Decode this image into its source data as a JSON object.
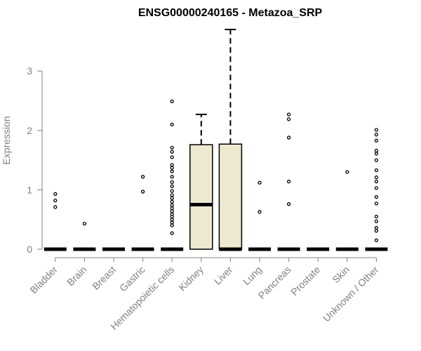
{
  "chart_data": {
    "type": "box",
    "title": "ENSG00000240165 - Metazoa_SRP",
    "xlabel": "",
    "ylabel": "Expression",
    "ylim": [
      0,
      3.7
    ],
    "yticks": [
      0,
      1,
      2,
      3
    ],
    "grid": false,
    "legend": "none",
    "box_fill": "#ede8d0",
    "box_stroke": "#000000",
    "axis_color": "#808080",
    "categories": [
      "Bladder",
      "Brain",
      "Breast",
      "Gastric",
      "Hematopoietic cells",
      "Kidney",
      "Liver",
      "Lung",
      "Pancreas",
      "Prostate",
      "Skin",
      "Unknown / Other"
    ],
    "boxes": [
      {
        "category": "Bladder",
        "q1": 0,
        "median": 0,
        "q3": 0,
        "whisker_low": 0,
        "whisker_high": 0,
        "outliers": [
          0.93,
          0.82,
          0.71
        ]
      },
      {
        "category": "Brain",
        "q1": 0,
        "median": 0,
        "q3": 0,
        "whisker_low": 0,
        "whisker_high": 0,
        "outliers": [
          0.43
        ]
      },
      {
        "category": "Breast",
        "q1": 0,
        "median": 0,
        "q3": 0,
        "whisker_low": 0,
        "whisker_high": 0,
        "outliers": []
      },
      {
        "category": "Gastric",
        "q1": 0,
        "median": 0,
        "q3": 0,
        "whisker_low": 0,
        "whisker_high": 0,
        "outliers": [
          1.22,
          0.97
        ]
      },
      {
        "category": "Hematopoietic cells",
        "q1": 0,
        "median": 0,
        "q3": 0,
        "whisker_low": 0,
        "whisker_high": 0,
        "outliers": [
          2.49,
          2.1,
          1.71,
          1.64,
          1.55,
          1.42,
          1.37,
          1.31,
          1.22,
          1.13,
          1.06,
          0.98,
          0.91,
          0.86,
          0.8,
          0.74,
          0.69,
          0.64,
          0.59,
          0.55,
          0.5,
          0.45,
          0.4,
          0.27
        ]
      },
      {
        "category": "Kidney",
        "q1": 0,
        "median": 0.75,
        "q3": 1.76,
        "whisker_low": 0,
        "whisker_high": 2.27,
        "outliers": []
      },
      {
        "category": "Liver",
        "q1": 0,
        "median": 0,
        "q3": 1.77,
        "whisker_low": 0,
        "whisker_high": 3.7,
        "outliers": []
      },
      {
        "category": "Lung",
        "q1": 0,
        "median": 0,
        "q3": 0,
        "whisker_low": 0,
        "whisker_high": 0,
        "outliers": [
          1.12,
          0.63
        ]
      },
      {
        "category": "Pancreas",
        "q1": 0,
        "median": 0,
        "q3": 0,
        "whisker_low": 0,
        "whisker_high": 0,
        "outliers": [
          2.27,
          2.19,
          1.88,
          1.14,
          0.76
        ]
      },
      {
        "category": "Prostate",
        "q1": 0,
        "median": 0,
        "q3": 0,
        "whisker_low": 0,
        "whisker_high": 0,
        "outliers": []
      },
      {
        "category": "Skin",
        "q1": 0,
        "median": 0,
        "q3": 0,
        "whisker_low": 0,
        "whisker_high": 0,
        "outliers": [
          1.3
        ]
      },
      {
        "category": "Unknown / Other",
        "q1": 0,
        "median": 0,
        "q3": 0,
        "whisker_low": 0,
        "whisker_high": 0,
        "outliers": [
          2.01,
          1.93,
          1.83,
          1.66,
          1.61,
          1.5,
          1.33,
          1.21,
          1.14,
          1.03,
          0.88,
          0.77,
          0.55,
          0.47,
          0.36,
          0.31,
          0.15
        ]
      }
    ]
  }
}
